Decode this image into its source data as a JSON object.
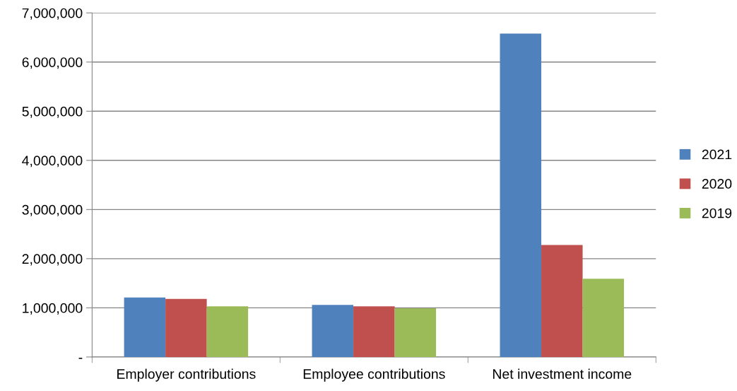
{
  "chart_data": {
    "type": "bar",
    "categories": [
      "Employer contributions",
      "Employee contributions",
      "Net investment income"
    ],
    "series": [
      {
        "name": "2021",
        "color": "#4f81bd",
        "values": [
          1210000,
          1060000,
          6580000
        ]
      },
      {
        "name": "2020",
        "color": "#c0504d",
        "values": [
          1180000,
          1030000,
          2280000
        ]
      },
      {
        "name": "2019",
        "color": "#9bbb59",
        "values": [
          1030000,
          990000,
          1590000
        ]
      }
    ],
    "ylim": [
      0,
      7000000
    ],
    "yticks": [
      {
        "value": 0,
        "label": "-"
      },
      {
        "value": 1000000,
        "label": "1,000,000"
      },
      {
        "value": 2000000,
        "label": "2,000,000"
      },
      {
        "value": 3000000,
        "label": "3,000,000"
      },
      {
        "value": 4000000,
        "label": "4,000,000"
      },
      {
        "value": 5000000,
        "label": "5,000,000"
      },
      {
        "value": 6000000,
        "label": "6,000,000"
      },
      {
        "value": 7000000,
        "label": "7,000,000"
      }
    ],
    "grid": "y",
    "legend": "right"
  }
}
